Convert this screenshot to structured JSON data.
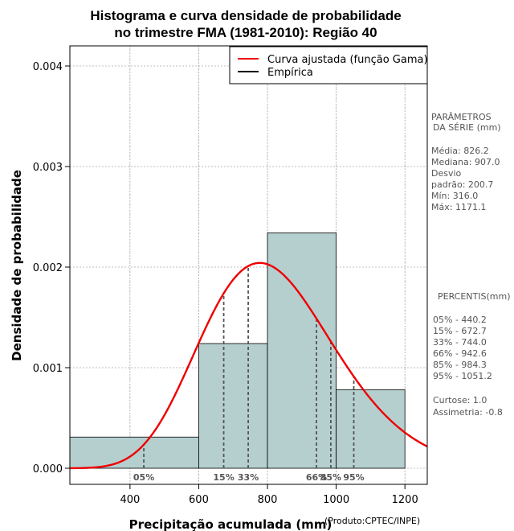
{
  "chart_data": {
    "type": "histogram",
    "title_line1": "Histograma e curva densidade de probabilidade",
    "title_line2": "no trimestre FMA (1981-2010): Região 40",
    "xlabel": "Precipitação acumulada (mm)",
    "ylabel": "Densidade de probabilidade",
    "credit": "(Produto:CPTEC/INPE)",
    "xlim": [
      225,
      1265
    ],
    "ylim": [
      -0.00016,
      0.0042
    ],
    "x_ticks": [
      400,
      600,
      800,
      1000,
      1200
    ],
    "x_tick_labels": [
      "400",
      "600",
      "800",
      "1000",
      "1200"
    ],
    "y_ticks": [
      0.0,
      0.001,
      0.002,
      0.003,
      0.004
    ],
    "y_tick_labels": [
      "0.000",
      "0.001",
      "0.002",
      "0.003",
      "0.004"
    ],
    "bins": [
      {
        "x0": 200,
        "x1": 600,
        "density": 0.00031
      },
      {
        "x0": 600,
        "x1": 800,
        "density": 0.00124
      },
      {
        "x0": 800,
        "x1": 1000,
        "density": 0.00234
      },
      {
        "x0": 1000,
        "x1": 1200,
        "density": 0.00078
      }
    ],
    "gamma_fit": {
      "shape": 17.0,
      "scale": 48.6,
      "color": "#ee0000"
    },
    "percentile_lines": [
      {
        "label": "05%",
        "x": 440.2
      },
      {
        "label": "15%",
        "x": 672.7
      },
      {
        "label": "33%",
        "x": 744.0
      },
      {
        "label": "66%",
        "x": 942.6
      },
      {
        "label": "85%",
        "x": 984.3
      },
      {
        "label": "95%",
        "x": 1051.2
      }
    ],
    "legend": [
      {
        "label": "Curva ajustada (função Gama)",
        "color": "#ee0000"
      },
      {
        "label": "Empírica",
        "color": "#000000"
      }
    ],
    "bar_color": "#b5cfcf"
  },
  "side_panel": {
    "params_title1": "PARÂMETROS",
    "params_title2": "DA SÉRIE (mm)",
    "media": "Média:  826.2",
    "mediana": "Mediana:  907.0",
    "desvio1": "Desvio",
    "desvio2": "padrão:  200.7",
    "min": "Mín:  316.0",
    "max": "Máx:  1171.1",
    "percentis_title": "PERCENTIS(mm)",
    "p05": "05% -  440.2",
    "p15": "15% -  672.7",
    "p33": "33% -  744.0",
    "p66": "66% -  942.6",
    "p85": "85% -  984.3",
    "p95": "95% -  1051.2",
    "curtose": "Curtose:  1.0",
    "assimetria": "Assimetria:  -0.8"
  }
}
